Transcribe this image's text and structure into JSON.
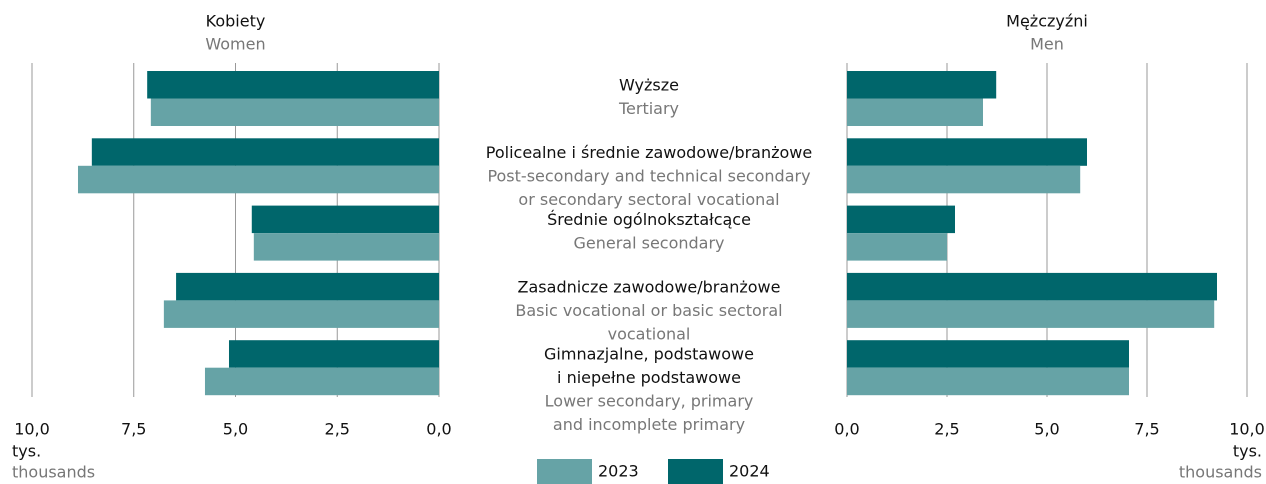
{
  "chart_data": [
    {
      "type": "bar",
      "orientation": "horizontal",
      "direction": "left",
      "title": "Kobiety",
      "subtitle": "Women",
      "categories": [
        [
          "Wyższe"
        ],
        [
          "Policealne i średnie zawodowe/branżowe"
        ],
        [
          "Średnie ogólnokształcące"
        ],
        [
          "Zasadnicze zawodowe/branżowe"
        ],
        [
          "Gimnazjalne, podstawowe",
          "i niepełne podstawowe"
        ]
      ],
      "categories_en": [
        [
          "Tertiary"
        ],
        [
          "Post-secondary and technical secondary",
          "or secondary sectoral vocational"
        ],
        [
          "General secondary"
        ],
        [
          "Basic vocational or basic sectoral",
          "vocational"
        ],
        [
          "Lower secondary, primary",
          "and incomplete primary"
        ]
      ],
      "series": [
        {
          "name": "2024",
          "color": "#00666b",
          "values": [
            7.17,
            8.53,
            4.6,
            6.46,
            5.16
          ]
        },
        {
          "name": "2023",
          "color": "#66a3a6",
          "values": [
            7.08,
            8.87,
            4.55,
            6.76,
            5.75
          ]
        }
      ],
      "xlim": [
        0,
        10
      ],
      "xticks": [
        {
          "value": 10,
          "label": "10,0"
        },
        {
          "value": 7.5,
          "label": "7,5"
        },
        {
          "value": 5,
          "label": "5,0"
        },
        {
          "value": 2.5,
          "label": "2,5"
        },
        {
          "value": 0,
          "label": "0,0"
        }
      ],
      "xlabel": "tys.",
      "xlabel_en": "thousands",
      "grid": true
    },
    {
      "type": "bar",
      "orientation": "horizontal",
      "direction": "right",
      "title": "Mężczyźni",
      "subtitle": "Men",
      "series": [
        {
          "color": "#00666b",
          "values": [
            3.73,
            6.0,
            2.7,
            9.25,
            7.05
          ]
        },
        {
          "color": "#66a3a6",
          "values": [
            3.4,
            5.83,
            2.5,
            9.18,
            7.05
          ]
        }
      ],
      "xlim": [
        0,
        10
      ],
      "xticks": [
        {
          "value": 0,
          "label": "0,0"
        },
        {
          "value": 2.5,
          "label": "2,5"
        },
        {
          "value": 5,
          "label": "5,0"
        },
        {
          "value": 7.5,
          "label": "7,5"
        },
        {
          "value": 10,
          "label": "10,0"
        }
      ],
      "xlabel": "tys.",
      "xlabel_en": "thousands",
      "grid": true
    }
  ]
}
